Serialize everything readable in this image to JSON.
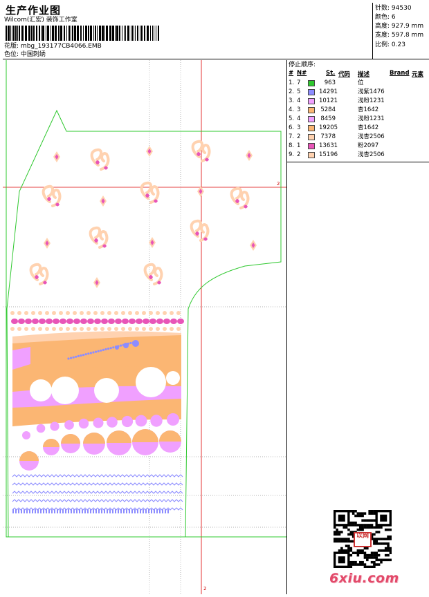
{
  "header": {
    "title": "生产作业图",
    "company": "Wilcom(汇宏) 装饰工作室",
    "design_label": "花版:",
    "design_value": "mbg_193177CB4066.EMB",
    "color_label": "色位:",
    "color_value": "中国刺绣"
  },
  "stats": [
    {
      "label": "针数:",
      "value": "94530"
    },
    {
      "label": "颜色:",
      "value": "6"
    },
    {
      "label": "高度:",
      "value": "927.9 mm"
    },
    {
      "label": "宽度:",
      "value": "597.8 mm"
    },
    {
      "label": "比例:",
      "value": "0.23"
    }
  ],
  "stop_sequence": {
    "title": "停止顺序:",
    "columns": {
      "num": "#",
      "n": "N#",
      "st": "St.",
      "code": "代码",
      "desc": "描述",
      "brand": "Brand",
      "elem": "元素"
    },
    "rows": [
      {
        "num": "1.",
        "n": "7",
        "color": "#2ec82e",
        "st": "963",
        "desc": "位"
      },
      {
        "num": "2.",
        "n": "5",
        "color": "#8c8cff",
        "st": "14291",
        "desc": "浅紫1476"
      },
      {
        "num": "3.",
        "n": "4",
        "color": "#f0a0ff",
        "st": "10121",
        "desc": "浅粉1231"
      },
      {
        "num": "4.",
        "n": "3",
        "color": "#fbb673",
        "st": "5284",
        "desc": "杏1642"
      },
      {
        "num": "5.",
        "n": "4",
        "color": "#f0a0ff",
        "st": "8459",
        "desc": "浅粉1231"
      },
      {
        "num": "6.",
        "n": "3",
        "color": "#fbb673",
        "st": "19205",
        "desc": "杏1642"
      },
      {
        "num": "7.",
        "n": "2",
        "color": "#ffd2b0",
        "st": "7378",
        "desc": "浅杏2506"
      },
      {
        "num": "8.",
        "n": "1",
        "color": "#e855b8",
        "st": "13631",
        "desc": "粉2097"
      },
      {
        "num": "9.",
        "n": "2",
        "color": "#ffd2b0",
        "st": "15196",
        "desc": "浅杏2506"
      }
    ]
  },
  "canvas": {
    "marker_right": "2",
    "marker_bottom": "2"
  },
  "watermark": {
    "text": "6xiu.com",
    "seal": "以网"
  }
}
